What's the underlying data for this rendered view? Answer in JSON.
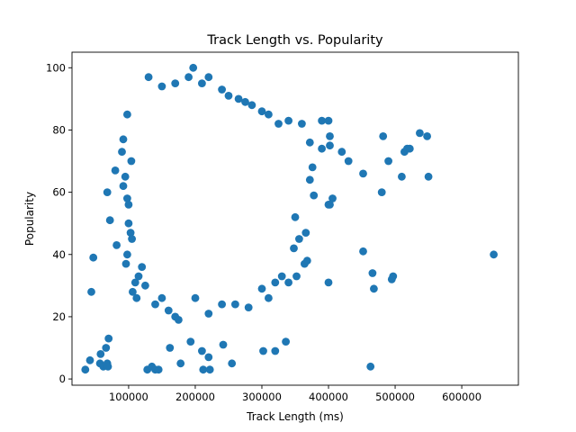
{
  "chart_data": {
    "type": "scatter",
    "title": "Track Length vs. Popularity",
    "xlabel": "Track Length (ms)",
    "ylabel": "Popularity",
    "xlim": [
      15000,
      685000
    ],
    "ylim": [
      -2,
      105
    ],
    "xticks": [
      100000,
      200000,
      300000,
      400000,
      500000,
      600000
    ],
    "xtick_labels": [
      "100000",
      "200000",
      "300000",
      "400000",
      "500000",
      "600000"
    ],
    "yticks": [
      0,
      20,
      40,
      60,
      80,
      100
    ],
    "ytick_labels": [
      "0",
      "20",
      "40",
      "60",
      "80",
      "100"
    ],
    "grid": false,
    "series": [
      {
        "color": "#1f77b4",
        "points": [
          [
            35000,
            3
          ],
          [
            42000,
            6
          ],
          [
            44000,
            28
          ],
          [
            47000,
            39
          ],
          [
            57000,
            5
          ],
          [
            58000,
            8
          ],
          [
            62000,
            4
          ],
          [
            66000,
            10
          ],
          [
            68000,
            5
          ],
          [
            69000,
            4
          ],
          [
            70000,
            13
          ],
          [
            68000,
            60
          ],
          [
            72000,
            51
          ],
          [
            80000,
            67
          ],
          [
            82000,
            43
          ],
          [
            90000,
            73
          ],
          [
            92000,
            77
          ],
          [
            98000,
            85
          ],
          [
            128000,
            3
          ],
          [
            135000,
            4
          ],
          [
            140000,
            3
          ],
          [
            145000,
            3
          ],
          [
            162000,
            10
          ],
          [
            178000,
            5
          ],
          [
            193000,
            12
          ],
          [
            210000,
            9
          ],
          [
            212000,
            3
          ],
          [
            220000,
            7
          ],
          [
            222000,
            3
          ],
          [
            242000,
            11
          ],
          [
            255000,
            5
          ],
          [
            302000,
            9
          ],
          [
            320000,
            9
          ],
          [
            336000,
            12
          ],
          [
            463000,
            4
          ],
          [
            130000,
            97
          ],
          [
            150000,
            94
          ],
          [
            170000,
            95
          ],
          [
            190000,
            97
          ],
          [
            197000,
            100
          ],
          [
            210000,
            95
          ],
          [
            220000,
            97
          ],
          [
            240000,
            93
          ],
          [
            250000,
            91
          ],
          [
            265000,
            90
          ],
          [
            275000,
            89
          ],
          [
            285000,
            88
          ],
          [
            300000,
            86
          ],
          [
            310000,
            85
          ],
          [
            325000,
            82
          ],
          [
            340000,
            83
          ],
          [
            360000,
            82
          ],
          [
            390000,
            83
          ],
          [
            400000,
            83
          ],
          [
            372000,
            76
          ],
          [
            390000,
            74
          ],
          [
            402000,
            75
          ],
          [
            402000,
            78
          ],
          [
            420000,
            73
          ],
          [
            430000,
            70
          ],
          [
            452000,
            66
          ],
          [
            482000,
            78
          ],
          [
            490000,
            70
          ],
          [
            510000,
            65
          ],
          [
            514000,
            73
          ],
          [
            518000,
            74
          ],
          [
            522000,
            74
          ],
          [
            537000,
            79
          ],
          [
            548000,
            78
          ],
          [
            550000,
            65
          ],
          [
            372000,
            64
          ],
          [
            376000,
            68
          ],
          [
            378000,
            59
          ],
          [
            400000,
            56
          ],
          [
            402000,
            56
          ],
          [
            406000,
            58
          ],
          [
            480000,
            60
          ],
          [
            348000,
            42
          ],
          [
            356000,
            45
          ],
          [
            366000,
            47
          ],
          [
            350000,
            52
          ],
          [
            364000,
            37
          ],
          [
            368000,
            38
          ],
          [
            352000,
            33
          ],
          [
            400000,
            31
          ],
          [
            452000,
            41
          ],
          [
            466000,
            34
          ],
          [
            468000,
            29
          ],
          [
            495000,
            32
          ],
          [
            497000,
            33
          ],
          [
            648000,
            40
          ],
          [
            106000,
            28
          ],
          [
            110000,
            31
          ],
          [
            112000,
            26
          ],
          [
            115000,
            33
          ],
          [
            120000,
            36
          ],
          [
            125000,
            30
          ],
          [
            140000,
            24
          ],
          [
            150000,
            26
          ],
          [
            160000,
            22
          ],
          [
            170000,
            20
          ],
          [
            175000,
            19
          ],
          [
            200000,
            26
          ],
          [
            220000,
            21
          ],
          [
            240000,
            24
          ],
          [
            260000,
            24
          ],
          [
            280000,
            23
          ],
          [
            300000,
            29
          ],
          [
            310000,
            26
          ],
          [
            320000,
            31
          ],
          [
            330000,
            33
          ],
          [
            340000,
            31
          ],
          [
            92000,
            62
          ],
          [
            95000,
            65
          ],
          [
            98000,
            58
          ],
          [
            100000,
            50
          ],
          [
            103000,
            47
          ],
          [
            105000,
            45
          ],
          [
            98000,
            40
          ],
          [
            96000,
            37
          ],
          [
            100000,
            56
          ],
          [
            104000,
            70
          ]
        ]
      }
    ]
  }
}
